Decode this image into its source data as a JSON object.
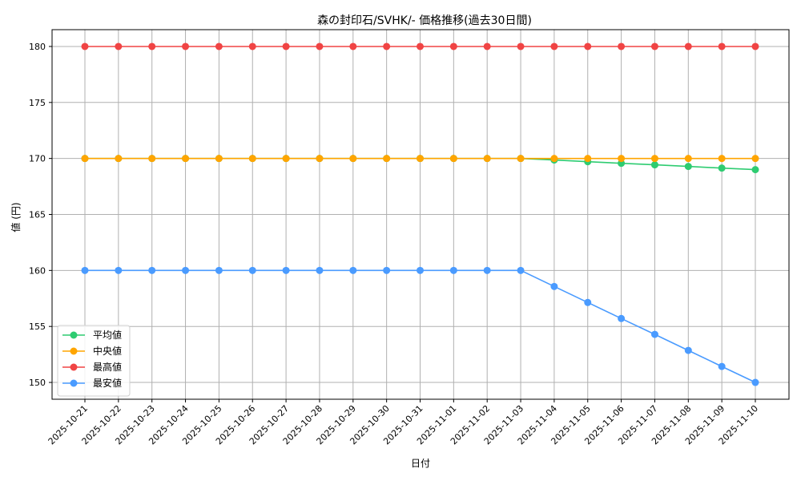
{
  "chart_data": {
    "type": "line",
    "title": "森の封印石/SVHK/- 価格推移(過去30日間)",
    "xlabel": "日付",
    "ylabel": "値 (円)",
    "ylim": [
      148.5,
      181.5
    ],
    "yticks": [
      150,
      155,
      160,
      165,
      170,
      175,
      180
    ],
    "grid": true,
    "legend_position": "lower-left",
    "categories": [
      "2025-10-21",
      "2025-10-22",
      "2025-10-23",
      "2025-10-24",
      "2025-10-25",
      "2025-10-26",
      "2025-10-27",
      "2025-10-28",
      "2025-10-29",
      "2025-10-30",
      "2025-10-31",
      "2025-11-01",
      "2025-11-02",
      "2025-11-03",
      "2025-11-04",
      "2025-11-05",
      "2025-11-06",
      "2025-11-07",
      "2025-11-08",
      "2025-11-09",
      "2025-11-10"
    ],
    "series": [
      {
        "name": "平均値",
        "color": "#2ecc71",
        "values": [
          170,
          170,
          170,
          170,
          170,
          170,
          170,
          170,
          170,
          170,
          170,
          170,
          170,
          170,
          169.86,
          169.71,
          169.57,
          169.43,
          169.29,
          169.14,
          169.0
        ]
      },
      {
        "name": "中央値",
        "color": "#ffa500",
        "values": [
          170,
          170,
          170,
          170,
          170,
          170,
          170,
          170,
          170,
          170,
          170,
          170,
          170,
          170,
          170,
          170,
          170,
          170,
          170,
          170,
          170
        ]
      },
      {
        "name": "最高値",
        "color": "#f04444",
        "values": [
          180,
          180,
          180,
          180,
          180,
          180,
          180,
          180,
          180,
          180,
          180,
          180,
          180,
          180,
          180,
          180,
          180,
          180,
          180,
          180,
          180
        ]
      },
      {
        "name": "最安値",
        "color": "#4a9bff",
        "values": [
          160,
          160,
          160,
          160,
          160,
          160,
          160,
          160,
          160,
          160,
          160,
          160,
          160,
          160,
          158.57,
          157.14,
          155.71,
          154.29,
          152.86,
          151.43,
          150.0
        ]
      }
    ]
  }
}
